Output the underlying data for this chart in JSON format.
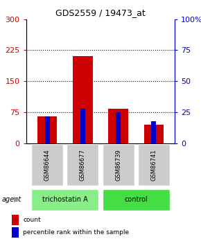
{
  "title": "GDS2559 / 19473_at",
  "samples": [
    "GSM86644",
    "GSM86677",
    "GSM86739",
    "GSM86741"
  ],
  "count_values": [
    65,
    210,
    83,
    45
  ],
  "percentile_values": [
    22,
    28,
    25,
    18
  ],
  "groups": [
    {
      "label": "trichostatin A",
      "indices": [
        0,
        1
      ],
      "color": "#88ee88"
    },
    {
      "label": "control",
      "indices": [
        2,
        3
      ],
      "color": "#44dd44"
    }
  ],
  "left_ylim": [
    0,
    300
  ],
  "right_ylim": [
    0,
    100
  ],
  "left_yticks": [
    0,
    75,
    150,
    225,
    300
  ],
  "right_yticks": [
    0,
    25,
    50,
    75,
    100
  ],
  "right_yticklabels": [
    "0",
    "25",
    "50",
    "75",
    "100%"
  ],
  "bar_color_red": "#cc0000",
  "bar_color_blue": "#0000cc",
  "red_bar_width": 0.55,
  "blue_bar_width": 0.15,
  "bg_color": "#ffffff",
  "sample_box_color": "#cccccc",
  "agent_label": "agent",
  "legend_items": [
    {
      "label": "count",
      "color": "#cc0000"
    },
    {
      "label": "percentile rank within the sample",
      "color": "#0000cc"
    }
  ]
}
